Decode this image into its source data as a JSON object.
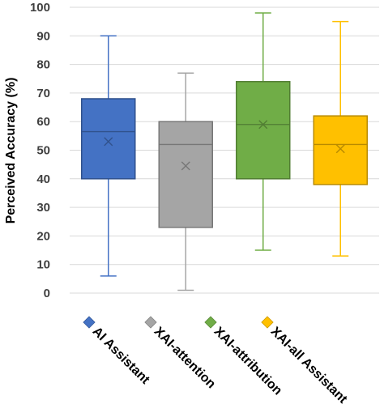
{
  "chart_data": {
    "type": "box",
    "ylabel": "Perceived Accuracy (%)",
    "ylim": [
      0,
      100
    ],
    "yticks": [
      0,
      10,
      20,
      30,
      40,
      50,
      60,
      70,
      80,
      90,
      100
    ],
    "grid": true,
    "legend_position": "bottom",
    "series": [
      {
        "name": "AI Assistant",
        "color": "#4472C4",
        "whisker_low": 6,
        "q1": 40,
        "median": 56.5,
        "q3": 68,
        "whisker_high": 90,
        "mean": 53
      },
      {
        "name": "XAI-attention",
        "color": "#A5A5A5",
        "whisker_low": 1,
        "q1": 23,
        "median": 52,
        "q3": 60,
        "whisker_high": 77,
        "mean": 44.5
      },
      {
        "name": "XAI-attribution",
        "color": "#70AD47",
        "whisker_low": 15,
        "q1": 40,
        "median": 59,
        "q3": 74,
        "whisker_high": 98,
        "mean": 59
      },
      {
        "name": "XAI-all Assistant",
        "color": "#FFC000",
        "whisker_low": 13,
        "q1": 38,
        "median": 52,
        "q3": 62,
        "whisker_high": 95,
        "mean": 50.5
      }
    ]
  }
}
